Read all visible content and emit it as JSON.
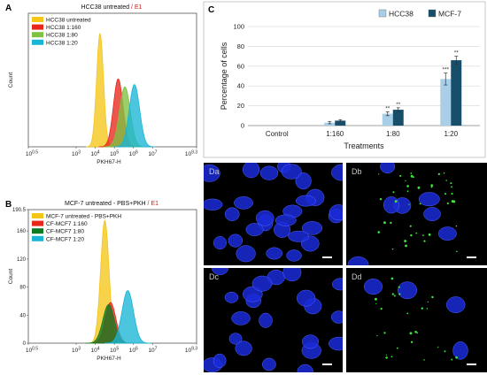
{
  "panel_labels": {
    "a": "A",
    "b": "B",
    "c": "C"
  },
  "colors": {
    "yellow": "#f5c518",
    "red": "#e8261a",
    "green_a": "#7ec242",
    "cyan": "#19b5d6",
    "dark_green_b": "#0e7a24",
    "hcc38_bar": "#a9cfe8",
    "mcf7_bar": "#174f6a",
    "gate_label": "#d42020",
    "nucleus": "#1a2bd8",
    "vesicle": "#3ee83a"
  },
  "chart_data": [
    {
      "id": "A",
      "type": "area",
      "title": "HCC38 untreated",
      "title_suffix": " / E1",
      "xlabel": "PKH67-H",
      "ylabel": "Count",
      "x_scale": "log10",
      "xlim": [
        0.5,
        9.3
      ],
      "x_tick_labels": [
        "10^0.5",
        "10^3",
        "10^4",
        "10^5",
        "10^6",
        "10^7",
        "10^9.3"
      ],
      "legend": [
        "HCC38  untreated",
        "HCC38 1:160",
        "HCC38 1:80",
        "HCC38 1:20"
      ],
      "series": [
        {
          "name": "HCC38  untreated",
          "color": "#f5c518",
          "peak_log10": 4.25,
          "height": 1.0,
          "sigma": 0.18
        },
        {
          "name": "HCC38 1:160",
          "color": "#e8261a",
          "peak_log10": 5.2,
          "height": 0.6,
          "sigma": 0.25
        },
        {
          "name": "HCC38 1:80",
          "color": "#7ec242",
          "peak_log10": 5.55,
          "height": 0.53,
          "sigma": 0.28
        },
        {
          "name": "HCC38 1:20",
          "color": "#19b5d6",
          "peak_log10": 6.05,
          "height": 0.55,
          "sigma": 0.27
        }
      ]
    },
    {
      "id": "B",
      "type": "area",
      "title": "MCF-7 untreated - PBS+PKH",
      "title_suffix": " / E1",
      "xlabel": "PKH67-H",
      "ylabel": "Count",
      "x_scale": "log10",
      "xlim": [
        0.5,
        9.3
      ],
      "ylim": [
        0,
        190.5
      ],
      "y_tick_labels": [
        "190.5",
        "160",
        "120",
        "80",
        "40",
        "0"
      ],
      "x_tick_labels": [
        "10^0.5",
        "10^3",
        "10^4",
        "10^5",
        "10^6",
        "10^7",
        "10^9.3"
      ],
      "legend": [
        "MCF-7 untreated - PBS+PKH",
        "CF-MCF7 1:160",
        "CF-MCF7 1:80",
        "CF-MCF7 1:20"
      ],
      "series": [
        {
          "name": "MCF-7 untreated - PBS+PKH",
          "color": "#f5c518",
          "peak_log10": 4.5,
          "height": 175,
          "sigma": 0.22
        },
        {
          "name": "CF-MCF7 1:160",
          "color": "#e8261a",
          "peak_log10": 4.8,
          "height": 58,
          "sigma": 0.28
        },
        {
          "name": "CF-MCF7 1:80",
          "color": "#0e7a24",
          "peak_log10": 4.7,
          "height": 55,
          "sigma": 0.3
        },
        {
          "name": "CF-MCF7 1:20",
          "color": "#19b5d6",
          "peak_log10": 5.7,
          "height": 75,
          "sigma": 0.3
        }
      ]
    },
    {
      "id": "C",
      "type": "bar",
      "categories": [
        "Control",
        "1:160",
        "1:80",
        "1:20"
      ],
      "xlabel": "Treatments",
      "ylabel": "Percentage of cells",
      "ylim": [
        0,
        100
      ],
      "y_ticks": [
        0,
        20,
        40,
        60,
        80,
        100
      ],
      "legend_placement": "top-right",
      "series": [
        {
          "name": "HCC38",
          "color": "#a9cfe8",
          "values": [
            0,
            3,
            12,
            47
          ],
          "errors": [
            0,
            1.2,
            2,
            6
          ],
          "significance": [
            "",
            "",
            "**",
            "***"
          ]
        },
        {
          "name": "MCF-7",
          "color": "#174f6a",
          "values": [
            0,
            5,
            16,
            66
          ],
          "errors": [
            0,
            1,
            2,
            4
          ],
          "significance": [
            "",
            "",
            "**",
            "**"
          ]
        }
      ]
    }
  ],
  "micrographs": [
    {
      "label": "Da"
    },
    {
      "label": "Db"
    },
    {
      "label": "Dc"
    },
    {
      "label": "Dd"
    }
  ]
}
